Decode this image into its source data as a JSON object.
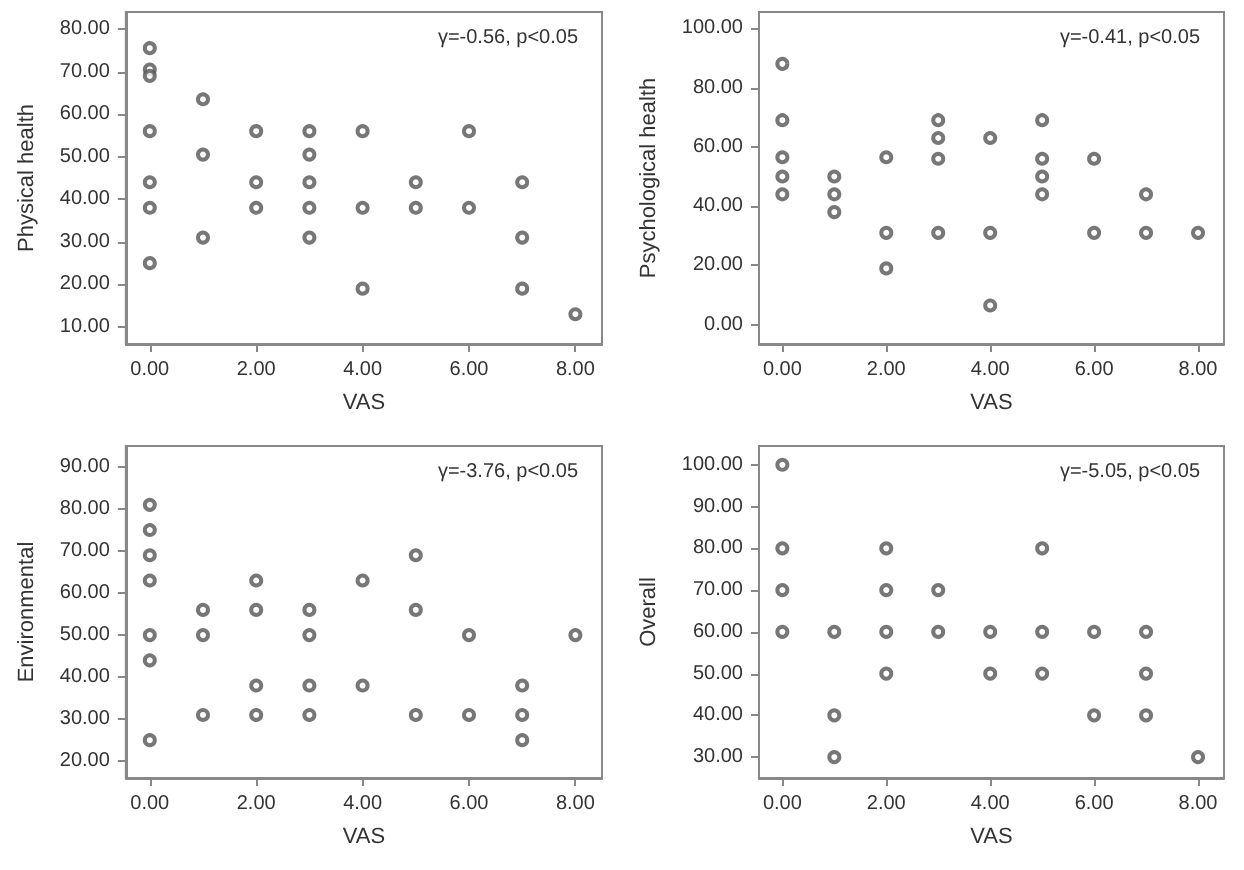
{
  "chart_data": [
    {
      "type": "scatter",
      "xlabel": "VAS",
      "ylabel": "Physical health",
      "annotations": [
        "γ=-0.56, p<0.05"
      ],
      "marker": "circle",
      "grid": false,
      "xlim": [
        -0.45,
        8.5
      ],
      "xticks": [
        {
          "value": 0,
          "label": "0.00"
        },
        {
          "value": 2,
          "label": "2.00"
        },
        {
          "value": 4,
          "label": "4.00"
        },
        {
          "value": 6,
          "label": "6.00"
        },
        {
          "value": 8,
          "label": "8.00"
        }
      ],
      "ylim": [
        6,
        84
      ],
      "yticks": [
        {
          "value": 10,
          "label": "10.00"
        },
        {
          "value": 20,
          "label": "20.00"
        },
        {
          "value": 30,
          "label": "30.00"
        },
        {
          "value": 40,
          "label": "40.00"
        },
        {
          "value": 50,
          "label": "50.00"
        },
        {
          "value": 60,
          "label": "60.00"
        },
        {
          "value": 70,
          "label": "70.00"
        },
        {
          "value": 80,
          "label": "80.00"
        }
      ],
      "series": [
        {
          "color": "#555555",
          "x": [
            0,
            0,
            0,
            0,
            0,
            0,
            0,
            1,
            1,
            1,
            2,
            2,
            2,
            3,
            3,
            3,
            3,
            3,
            4,
            4,
            4,
            5,
            5,
            6,
            6,
            7,
            7,
            7,
            8
          ],
          "values": [
            75.5,
            70.5,
            69,
            56,
            44,
            38,
            25,
            63.5,
            50.5,
            31,
            56,
            44,
            38,
            56,
            50.5,
            44,
            38,
            31,
            56,
            38,
            19,
            44,
            38,
            56,
            38,
            44,
            31,
            19,
            13
          ]
        }
      ]
    },
    {
      "type": "scatter",
      "xlabel": "VAS",
      "ylabel": "Psychological health",
      "annotations": [
        "γ=-0.41, p<0.05"
      ],
      "marker": "circle",
      "grid": false,
      "xlim": [
        -0.45,
        8.5
      ],
      "xticks": [
        {
          "value": 0,
          "label": "0.00"
        },
        {
          "value": 2,
          "label": "2.00"
        },
        {
          "value": 4,
          "label": "4.00"
        },
        {
          "value": 6,
          "label": "6.00"
        },
        {
          "value": 8,
          "label": "8.00"
        }
      ],
      "ylim": [
        -6.5,
        105.5
      ],
      "yticks": [
        {
          "value": 0,
          "label": "0.00"
        },
        {
          "value": 20,
          "label": "20.00"
        },
        {
          "value": 40,
          "label": "40.00"
        },
        {
          "value": 60,
          "label": "60.00"
        },
        {
          "value": 80,
          "label": "80.00"
        },
        {
          "value": 100,
          "label": "100.00"
        }
      ],
      "series": [
        {
          "color": "#555555",
          "x": [
            0,
            0,
            0,
            0,
            0,
            1,
            1,
            1,
            2,
            2,
            2,
            3,
            3,
            3,
            3,
            4,
            4,
            4,
            5,
            5,
            5,
            5,
            6,
            6,
            7,
            7,
            8
          ],
          "values": [
            88,
            69,
            56.5,
            50,
            44,
            50,
            44,
            38,
            56.5,
            31,
            19,
            69,
            63,
            56,
            31,
            63,
            31,
            6.5,
            69,
            56,
            50,
            44,
            56,
            31,
            44,
            31,
            31
          ]
        }
      ]
    },
    {
      "type": "scatter",
      "xlabel": "VAS",
      "ylabel": "Environmental",
      "annotations": [
        "γ=-3.76, p<0.05"
      ],
      "marker": "circle",
      "grid": false,
      "xlim": [
        -0.45,
        8.5
      ],
      "xticks": [
        {
          "value": 0,
          "label": "0.00"
        },
        {
          "value": 2,
          "label": "2.00"
        },
        {
          "value": 4,
          "label": "4.00"
        },
        {
          "value": 6,
          "label": "6.00"
        },
        {
          "value": 8,
          "label": "8.00"
        }
      ],
      "ylim": [
        16,
        95
      ],
      "yticks": [
        {
          "value": 20,
          "label": "20.00"
        },
        {
          "value": 30,
          "label": "30.00"
        },
        {
          "value": 40,
          "label": "40.00"
        },
        {
          "value": 50,
          "label": "50.00"
        },
        {
          "value": 60,
          "label": "60.00"
        },
        {
          "value": 70,
          "label": "70.00"
        },
        {
          "value": 80,
          "label": "80.00"
        },
        {
          "value": 90,
          "label": "90.00"
        }
      ],
      "series": [
        {
          "color": "#555555",
          "x": [
            0,
            0,
            0,
            0,
            0,
            0,
            0,
            1,
            1,
            1,
            2,
            2,
            2,
            2,
            3,
            3,
            3,
            3,
            4,
            4,
            5,
            5,
            5,
            6,
            6,
            7,
            7,
            7,
            8
          ],
          "values": [
            81,
            75,
            69,
            63,
            50,
            44,
            25,
            56,
            50,
            31,
            63,
            56,
            38,
            31,
            56,
            50,
            38,
            31,
            63,
            38,
            69,
            56,
            31,
            50,
            31,
            38,
            31,
            25,
            50
          ]
        }
      ]
    },
    {
      "type": "scatter",
      "xlabel": "VAS",
      "ylabel": "Overall",
      "annotations": [
        "γ=-5.05, p<0.05"
      ],
      "marker": "circle",
      "grid": false,
      "xlim": [
        -0.45,
        8.5
      ],
      "xticks": [
        {
          "value": 0,
          "label": "0.00"
        },
        {
          "value": 2,
          "label": "2.00"
        },
        {
          "value": 4,
          "label": "4.00"
        },
        {
          "value": 6,
          "label": "6.00"
        },
        {
          "value": 8,
          "label": "8.00"
        }
      ],
      "ylim": [
        25,
        104.5
      ],
      "yticks": [
        {
          "value": 30,
          "label": "30.00"
        },
        {
          "value": 40,
          "label": "40.00"
        },
        {
          "value": 50,
          "label": "50.00"
        },
        {
          "value": 60,
          "label": "60.00"
        },
        {
          "value": 70,
          "label": "70.00"
        },
        {
          "value": 80,
          "label": "80.00"
        },
        {
          "value": 90,
          "label": "90.00"
        },
        {
          "value": 100,
          "label": "100.00"
        }
      ],
      "series": [
        {
          "color": "#555555",
          "x": [
            0,
            0,
            0,
            0,
            1,
            1,
            1,
            2,
            2,
            2,
            2,
            3,
            3,
            4,
            4,
            5,
            5,
            5,
            6,
            6,
            7,
            7,
            7,
            8
          ],
          "values": [
            100,
            80,
            70,
            60,
            60,
            40,
            30,
            80,
            70,
            60,
            50,
            70,
            60,
            60,
            50,
            80,
            60,
            50,
            60,
            40,
            60,
            50,
            40,
            30
          ]
        }
      ]
    }
  ]
}
